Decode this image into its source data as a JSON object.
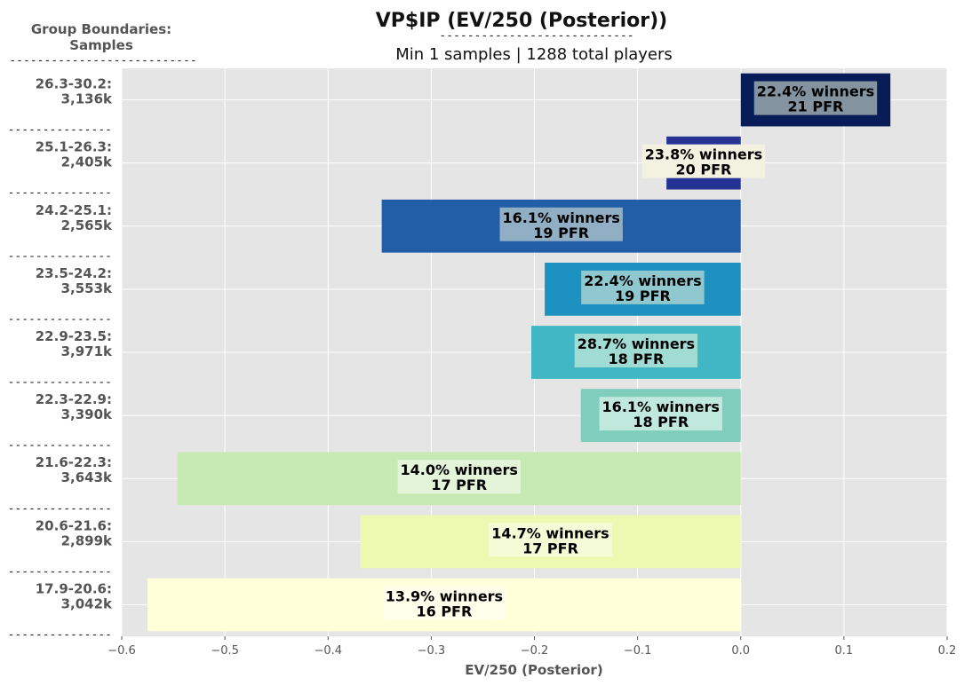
{
  "chart_data": {
    "type": "bar",
    "orientation": "horizontal",
    "title": "VP$IP (EV/250 (Posterior))",
    "title_underline": "----------------------------",
    "subtitle": "Min 1 samples | 1288 total players",
    "group_header": [
      "Group Boundaries:",
      "Samples"
    ],
    "group_header_underline": "---------------------------",
    "row_separator": "---------------",
    "xlabel": "EV/250 (Posterior)",
    "xlim": [
      -0.6,
      0.2
    ],
    "xticks": [
      -0.6,
      -0.5,
      -0.4,
      -0.3,
      -0.2,
      -0.1,
      0.0,
      0.1,
      0.2
    ],
    "xtick_labels": [
      "−0.6",
      "−0.5",
      "−0.4",
      "−0.3",
      "−0.2",
      "−0.1",
      "0.0",
      "0.1",
      "0.2"
    ],
    "grid": true,
    "bars": [
      {
        "group": "26.3-30.2:",
        "samples": "3,136k",
        "value": 0.145,
        "winners": "22.4% winners",
        "pfr": "21 PFR",
        "color": "#081d58",
        "label_box": "#8393a0"
      },
      {
        "group": "25.1-26.3:",
        "samples": "2,405k",
        "value": -0.072,
        "winners": "23.8% winners",
        "pfr": "20 PFR",
        "color": "#253494",
        "label_box": "#f3f1e0"
      },
      {
        "group": "24.2-25.1:",
        "samples": "2,565k",
        "value": -0.348,
        "winners": "16.1% winners",
        "pfr": "19 PFR",
        "color": "#225ea8",
        "label_box": "#90aec4"
      },
      {
        "group": "23.5-24.2:",
        "samples": "3,553k",
        "value": -0.19,
        "winners": "22.4% winners",
        "pfr": "19 PFR",
        "color": "#1d91c0",
        "label_box": "#8fc8cf"
      },
      {
        "group": "22.9-23.5:",
        "samples": "3,971k",
        "value": -0.203,
        "winners": "28.7% winners",
        "pfr": "18 PFR",
        "color": "#41b6c4",
        "label_box": "#a0dbd4"
      },
      {
        "group": "22.3-22.9:",
        "samples": "3,390k",
        "value": -0.155,
        "winners": "16.1% winners",
        "pfr": "18 PFR",
        "color": "#7fcdbb",
        "label_box": "#c0e8dc"
      },
      {
        "group": "21.6-22.3:",
        "samples": "3,643k",
        "value": -0.546,
        "winners": "14.0% winners",
        "pfr": "17 PFR",
        "color": "#c7e9b4",
        "label_box": "#e3f4d8"
      },
      {
        "group": "20.6-21.6:",
        "samples": "2,899k",
        "value": -0.369,
        "winners": "14.7% winners",
        "pfr": "17 PFR",
        "color": "#edf8b1",
        "label_box": "#f6fbd7"
      },
      {
        "group": "17.9-20.6:",
        "samples": "3,042k",
        "value": -0.575,
        "winners": "13.9% winners",
        "pfr": "16 PFR",
        "color": "#ffffd9",
        "label_box": "#ffffec"
      }
    ],
    "colors": {
      "plot_bg": "#e5e5e5",
      "grid": "#ffffff",
      "text": "#555555"
    }
  }
}
